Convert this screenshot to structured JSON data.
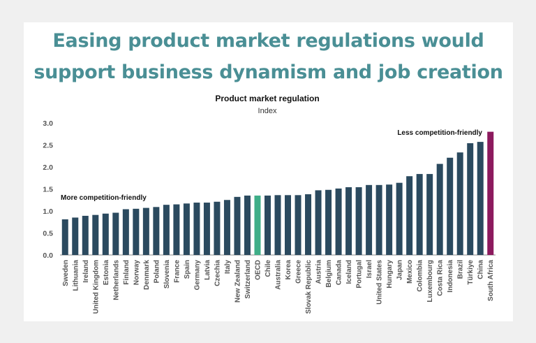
{
  "headline": "Easing product market regulations would support business dynamism and job creation",
  "chart_data": {
    "type": "bar",
    "title": "Product market regulation",
    "subtitle": "Index",
    "xlabel": "",
    "ylabel": "",
    "ylim": [
      0,
      3.0
    ],
    "yticks": [
      "0.0",
      "0.5",
      "1.0",
      "1.5",
      "2.0",
      "2.5",
      "3.0"
    ],
    "grid": false,
    "categories": [
      "Sweden",
      "Lithuania",
      "Ireland",
      "United Kingdom",
      "Estonia",
      "Netherlands",
      "Finland",
      "Norway",
      "Denmark",
      "Poland",
      "Slovenia",
      "France",
      "Spain",
      "Germany",
      "Latvia",
      "Czechia",
      "Italy",
      "New Zealand",
      "Switzerland",
      "OECD",
      "Chile",
      "Australia",
      "Korea",
      "Greece",
      "Slovak Republic",
      "Austria",
      "Belgium",
      "Canada",
      "Iceland",
      "Portugal",
      "Israel",
      "United States",
      "Hungary",
      "Japan",
      "Mexico",
      "Colombia",
      "Luxembourg",
      "Costa Rica",
      "Indonesia",
      "Brazil",
      "Türkiye",
      "China",
      "South Africa"
    ],
    "values": [
      0.81,
      0.85,
      0.89,
      0.91,
      0.94,
      0.96,
      1.04,
      1.05,
      1.07,
      1.09,
      1.14,
      1.15,
      1.17,
      1.19,
      1.19,
      1.21,
      1.25,
      1.32,
      1.35,
      1.35,
      1.35,
      1.36,
      1.36,
      1.36,
      1.38,
      1.47,
      1.48,
      1.51,
      1.54,
      1.54,
      1.59,
      1.59,
      1.6,
      1.64,
      1.79,
      1.84,
      1.84,
      2.07,
      2.21,
      2.33,
      2.54,
      2.57,
      2.8
    ],
    "colors": {
      "default": "#2b4a5f",
      "OECD": "#3fae88",
      "South Africa": "#8c1a5e"
    },
    "annotations": [
      "More competition-friendly",
      "Less competition-friendly"
    ]
  }
}
